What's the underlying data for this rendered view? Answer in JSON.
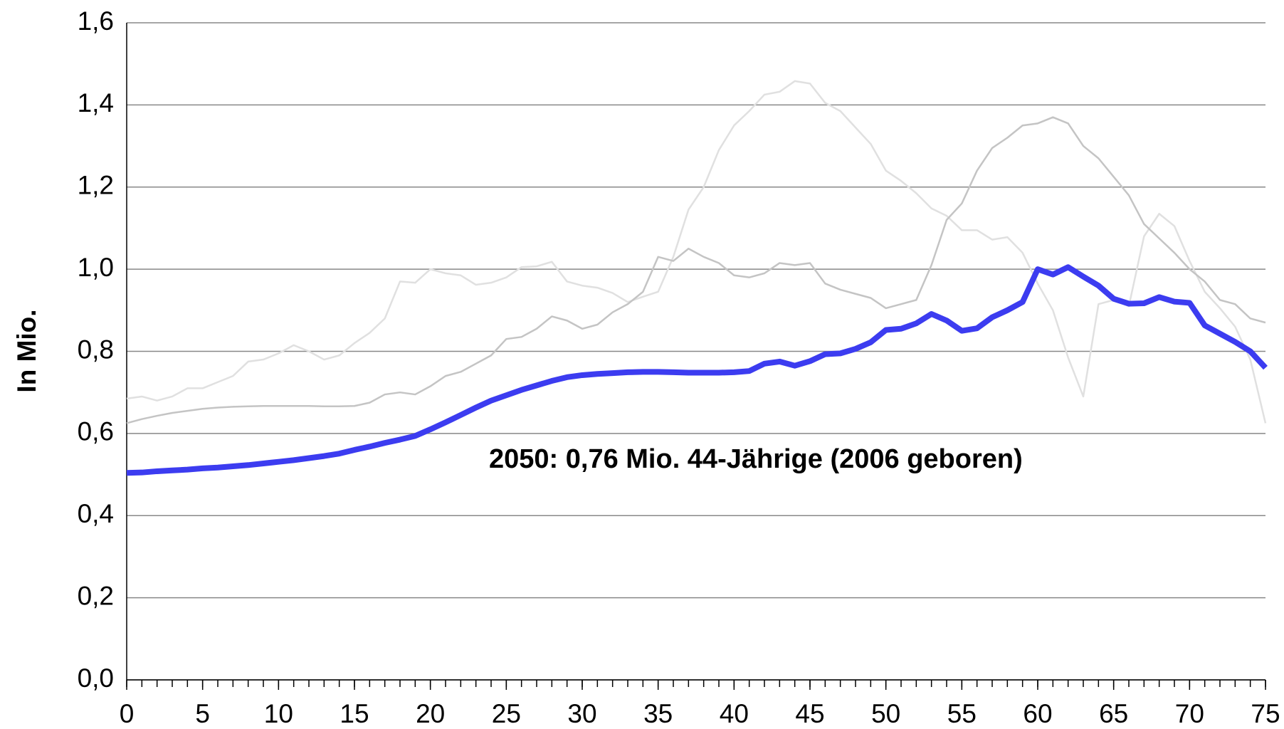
{
  "chart_data": {
    "type": "line",
    "y_label": "In Mio.",
    "annotation": "2050: 0,76 Mio. 44-Jährige (2006 geboren)",
    "annotation_color": "#3c3cf0",
    "x": [
      0,
      1,
      2,
      3,
      4,
      5,
      6,
      7,
      8,
      9,
      10,
      11,
      12,
      13,
      14,
      15,
      16,
      17,
      18,
      19,
      20,
      21,
      22,
      23,
      24,
      25,
      26,
      27,
      28,
      29,
      30,
      31,
      32,
      33,
      34,
      35,
      36,
      37,
      38,
      39,
      40,
      41,
      42,
      43,
      44,
      45,
      46,
      47,
      48,
      49,
      50,
      51,
      52,
      53,
      54,
      55,
      56,
      57,
      58,
      59,
      60,
      61,
      62,
      63,
      64,
      65,
      66,
      67,
      68,
      69,
      70,
      71,
      72,
      73,
      74,
      75
    ],
    "series": [
      {
        "color": "#e0e0e0",
        "width": 2.5,
        "values": [
          0.685,
          0.69,
          0.68,
          0.69,
          0.71,
          0.71,
          0.725,
          0.74,
          0.775,
          0.78,
          0.795,
          0.815,
          0.8,
          0.78,
          0.79,
          0.82,
          0.845,
          0.88,
          0.97,
          0.967,
          1.0,
          0.99,
          0.985,
          0.962,
          0.967,
          0.98,
          1.005,
          1.007,
          1.018,
          0.97,
          0.96,
          0.955,
          0.942,
          0.92,
          0.933,
          0.945,
          1.03,
          1.145,
          1.2,
          1.29,
          1.35,
          1.385,
          1.425,
          1.432,
          1.458,
          1.452,
          1.405,
          1.385,
          1.345,
          1.305,
          1.24,
          1.215,
          1.185,
          1.148,
          1.13,
          1.095,
          1.095,
          1.072,
          1.078,
          1.04,
          0.965,
          0.9,
          0.785,
          0.69,
          0.915,
          0.925,
          0.91,
          1.08,
          1.135,
          1.105,
          1.02,
          0.945,
          0.905,
          0.86,
          0.78,
          0.625
        ]
      },
      {
        "color": "#c4c4c4",
        "width": 2.5,
        "values": [
          0.625,
          0.635,
          0.643,
          0.65,
          0.655,
          0.66,
          0.663,
          0.665,
          0.666,
          0.667,
          0.667,
          0.667,
          0.667,
          0.666,
          0.666,
          0.667,
          0.675,
          0.695,
          0.7,
          0.695,
          0.715,
          0.74,
          0.75,
          0.77,
          0.79,
          0.83,
          0.835,
          0.855,
          0.885,
          0.875,
          0.855,
          0.865,
          0.895,
          0.915,
          0.945,
          1.03,
          1.02,
          1.05,
          1.03,
          1.015,
          0.985,
          0.98,
          0.99,
          1.015,
          1.01,
          1.015,
          0.965,
          0.95,
          0.94,
          0.93,
          0.905,
          0.915,
          0.925,
          1.01,
          1.12,
          1.16,
          1.24,
          1.295,
          1.32,
          1.35,
          1.355,
          1.37,
          1.355,
          1.3,
          1.27,
          1.225,
          1.18,
          1.11,
          1.075,
          1.04,
          1.0,
          0.97,
          0.925,
          0.915,
          0.88,
          0.87
        ]
      },
      {
        "color": "#3c3cf0",
        "width": 8,
        "values": [
          0.504,
          0.505,
          0.508,
          0.51,
          0.512,
          0.515,
          0.517,
          0.52,
          0.523,
          0.527,
          0.531,
          0.535,
          0.54,
          0.545,
          0.551,
          0.56,
          0.568,
          0.577,
          0.585,
          0.594,
          0.61,
          0.627,
          0.645,
          0.663,
          0.68,
          0.693,
          0.706,
          0.717,
          0.728,
          0.737,
          0.742,
          0.745,
          0.747,
          0.749,
          0.75,
          0.75,
          0.749,
          0.748,
          0.748,
          0.748,
          0.749,
          0.752,
          0.77,
          0.775,
          0.765,
          0.776,
          0.793,
          0.795,
          0.806,
          0.822,
          0.852,
          0.855,
          0.868,
          0.891,
          0.875,
          0.85,
          0.856,
          0.883,
          0.9,
          0.92,
          1.0,
          0.987,
          1.005,
          0.982,
          0.96,
          0.928,
          0.916,
          0.917,
          0.932,
          0.921,
          0.918,
          0.863,
          0.843,
          0.823,
          0.8,
          0.76
        ]
      }
    ],
    "xlim": [
      0,
      75
    ],
    "xticks": [
      0,
      5,
      10,
      15,
      20,
      25,
      30,
      35,
      40,
      45,
      50,
      55,
      60,
      65,
      70,
      75
    ],
    "ylim": [
      0,
      1.6
    ],
    "yticks": [
      {
        "value": 0,
        "label": "0,0"
      },
      {
        "value": 0.2,
        "label": "0,2"
      },
      {
        "value": 0.4,
        "label": "0,4"
      },
      {
        "value": 0.6,
        "label": "0,6"
      },
      {
        "value": 0.8,
        "label": "0,8"
      },
      {
        "value": 1.0,
        "label": "1,0"
      },
      {
        "value": 1.2,
        "label": "1,2"
      },
      {
        "value": 1.4,
        "label": "1,4"
      },
      {
        "value": 1.6,
        "label": "1,6"
      }
    ],
    "grid": true
  }
}
